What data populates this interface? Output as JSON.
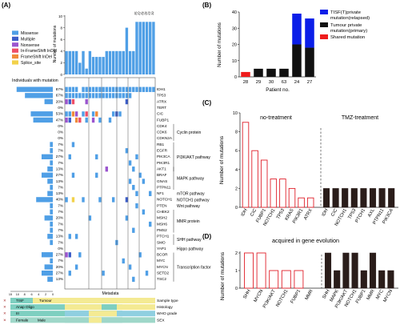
{
  "panel_labels": {
    "a": "(A)",
    "b": "(B)",
    "c": "(C)",
    "d": "(D)"
  },
  "legend_a": [
    {
      "label": "Missense",
      "color": "#4f9fe6"
    },
    {
      "label": "Multiple",
      "color": "#3d5ec8"
    },
    {
      "label": "Nonsense",
      "color": "#9b55cf"
    },
    {
      "label": "In-FrameShift InDel",
      "color": "#ef4e67"
    },
    {
      "label": "FrameShift InDel",
      "color": "#f08b3a"
    },
    {
      "label": "Splice_site",
      "color": "#f2d24a"
    }
  ],
  "individuals_label": "Individuals with mutation",
  "metadata_label": "Metadata",
  "left_axis_ticks": [
    "15",
    "10",
    "8",
    "6",
    "4",
    "2",
    "0"
  ],
  "genes": [
    "IDH1",
    "TP53",
    "ATRX",
    "TERT",
    "CIC",
    "FUBP1",
    "CDK4",
    "CDK6",
    "CDKN2A",
    "RB1",
    "EGFR",
    "PIK3CA",
    "PIK3R1",
    "AKT1",
    "BRAF",
    "GNAS",
    "PTPN11",
    "NF1",
    "NOTCH1",
    "PTEN",
    "CHEK2",
    "MSH2",
    "MSH6",
    "PMS2",
    "PTCH1",
    "SMO",
    "YAP1",
    "BCOR",
    "MYC",
    "MYCN",
    "SETD2",
    "TSC2"
  ],
  "gene_percentages": [
    "87%",
    "67%",
    "20%",
    "0%",
    "53%",
    "47%",
    "0%",
    "0%",
    "0%",
    "7%",
    "7%",
    "27%",
    "7%",
    "13%",
    "27%",
    "13%",
    "7%",
    "13%",
    "40%",
    "7%",
    "7%",
    "20%",
    "7%",
    "7%",
    "13%",
    "7%",
    "0%",
    "27%",
    "7%",
    "20%",
    "27%",
    "13%"
  ],
  "pathways": [
    {
      "label": "Cyclin protein"
    },
    {
      "label": "PI3K/AKT pathway"
    },
    {
      "label": "MAPK pathway"
    },
    {
      "label": "mTOR pathway"
    },
    {
      "label": "NOTCH1 pathway"
    },
    {
      "label": "Wnt pathway"
    },
    {
      "label": "MMR protein"
    },
    {
      "label": "SHH pathway"
    },
    {
      "label": "Hippo pathway"
    },
    {
      "label": "Transcription factor"
    }
  ],
  "patients": [
    "P28",
    "P29",
    "P30",
    "P63",
    "P24",
    "P27"
  ],
  "metadata_rows": [
    {
      "label": "Sample type",
      "left": "TISF",
      "right": "Tumour"
    },
    {
      "label": "Histology",
      "left": "Anap Oligo",
      "right": ""
    },
    {
      "label": "WHO grade",
      "left": "III",
      "right": ""
    },
    {
      "label": "SEX",
      "left": "Female",
      "right": "Male"
    }
  ],
  "top_bar_ylabel": "Number of mutations",
  "top_bar_values": [
    4,
    4,
    4,
    4,
    2,
    4,
    1,
    4,
    3,
    3,
    3,
    3,
    4,
    4,
    4,
    4,
    4,
    4,
    8,
    4,
    4,
    9,
    9,
    9,
    9,
    9,
    9
  ],
  "top_bar_labels": [
    "25",
    "22",
    "25",
    "26",
    "23",
    "19"
  ],
  "chart_data": [
    {
      "panel": "B",
      "type": "bar",
      "categories": [
        "28",
        "29",
        "30",
        "63",
        "24",
        "27"
      ],
      "xlabel": "Patient no.",
      "ylabel": "Number of mutations",
      "ylim": [
        0,
        40
      ],
      "yticks": [
        0,
        10,
        20,
        30,
        40
      ],
      "series": [
        {
          "name": "Shared mutation",
          "color": "#ee1c1c",
          "values": [
            3,
            0,
            0,
            0,
            0,
            0
          ]
        },
        {
          "name": "Tumour private mutation(primary)",
          "color": "#111111",
          "values": [
            0,
            5,
            5,
            5,
            20,
            18
          ]
        },
        {
          "name": "TISF(T)private mutation(relapsed)",
          "color": "#0b1ee8",
          "values": [
            0,
            0,
            0,
            0,
            19,
            18
          ]
        }
      ],
      "legend": "top-right"
    },
    {
      "panel": "C",
      "type": "bar",
      "ylabel": "Number of mutations",
      "ylim": [
        0,
        10
      ],
      "yticks": [
        0,
        2,
        4,
        6,
        8,
        10
      ],
      "groups": [
        {
          "title": "no-treatment",
          "categories": [
            "IDH",
            "CIC",
            "FUBP1",
            "NOTCH1",
            "TP53",
            "KRAS",
            "PIK3R1",
            "ATRX"
          ],
          "values": [
            9,
            6,
            5,
            3,
            3,
            2,
            1,
            1
          ],
          "style": "open-red"
        },
        {
          "title": "TMZ-treatment",
          "categories": [
            "IDH",
            "CIC",
            "NOTCH1",
            "TP53",
            "PTCH1",
            "AXL",
            "PTPN11",
            "PIK3CA"
          ],
          "values": [
            2,
            2,
            2,
            2,
            2,
            2,
            2,
            2
          ],
          "style": "solid-black"
        }
      ]
    },
    {
      "panel": "D",
      "type": "bar",
      "title": "acquired in gene evolution",
      "ylabel": "Number of mutations",
      "ylim": [
        0,
        2
      ],
      "yticks": [
        0,
        1,
        2
      ],
      "groups": [
        {
          "categories": [
            "SHH",
            "MYCN",
            "PI3K/AKT",
            "NOTCH1",
            "FUBP1",
            "MMR"
          ],
          "values": [
            2,
            2,
            1,
            1,
            1,
            0
          ],
          "style": "open-red"
        },
        {
          "categories": [
            "SHH",
            "MAPK",
            "PI3K/AKT",
            "NOTCH1",
            "FUBP1",
            "MMR",
            "MYC",
            "MYCN"
          ],
          "values": [
            2,
            1,
            2,
            2,
            1,
            2,
            1,
            1
          ],
          "style": "solid-black"
        }
      ]
    }
  ]
}
